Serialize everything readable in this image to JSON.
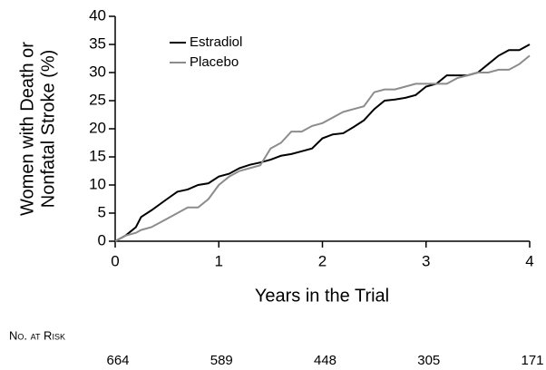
{
  "chart_data": {
    "type": "line",
    "xlabel": "Years in the Trial",
    "ylabel": [
      "Women with Death or",
      "Nonfatal Stroke (%)"
    ],
    "x": [
      0,
      0.1,
      0.2,
      0.25,
      0.35,
      0.5,
      0.6,
      0.7,
      0.8,
      0.9,
      1.0,
      1.1,
      1.2,
      1.3,
      1.4,
      1.5,
      1.6,
      1.7,
      1.8,
      1.9,
      2.0,
      2.1,
      2.2,
      2.3,
      2.4,
      2.5,
      2.6,
      2.7,
      2.8,
      2.9,
      3.0,
      3.1,
      3.2,
      3.3,
      3.4,
      3.5,
      3.6,
      3.7,
      3.8,
      3.9,
      4.0
    ],
    "series": [
      {
        "name": "Estradiol",
        "color": "#000000",
        "values": [
          0,
          1,
          2.5,
          4.3,
          5.5,
          7.5,
          8.8,
          9.2,
          10,
          10.3,
          11.5,
          12,
          13,
          13.6,
          14,
          14.5,
          15.2,
          15.5,
          16,
          16.5,
          18.3,
          19,
          19.2,
          20.3,
          21.5,
          23.5,
          25,
          25.2,
          25.5,
          26,
          27.5,
          28,
          29.5,
          29.5,
          29.5,
          30,
          31.5,
          33,
          34,
          34,
          35
        ]
      },
      {
        "name": "Placebo",
        "color": "#8c8c8c",
        "values": [
          0,
          1,
          1.5,
          2,
          2.5,
          4,
          5,
          6,
          6,
          7.5,
          10,
          11.5,
          12.5,
          13,
          13.5,
          16.5,
          17.5,
          19.5,
          19.5,
          20.5,
          21,
          22,
          23,
          23.5,
          24,
          26.5,
          27,
          27,
          27.5,
          28,
          28,
          28,
          28,
          29,
          29.5,
          30,
          30,
          30.5,
          30.5,
          31.5,
          33
        ]
      }
    ],
    "xlim": [
      0,
      4
    ],
    "xticks": [
      0,
      1,
      2,
      3,
      4
    ],
    "ylim": [
      0,
      40
    ],
    "yticks": [
      0,
      5,
      10,
      15,
      20,
      25,
      30,
      35,
      40
    ],
    "grid": false,
    "risk_table": {
      "label": "No. at Risk",
      "values": [
        664,
        589,
        448,
        305,
        171
      ]
    }
  }
}
